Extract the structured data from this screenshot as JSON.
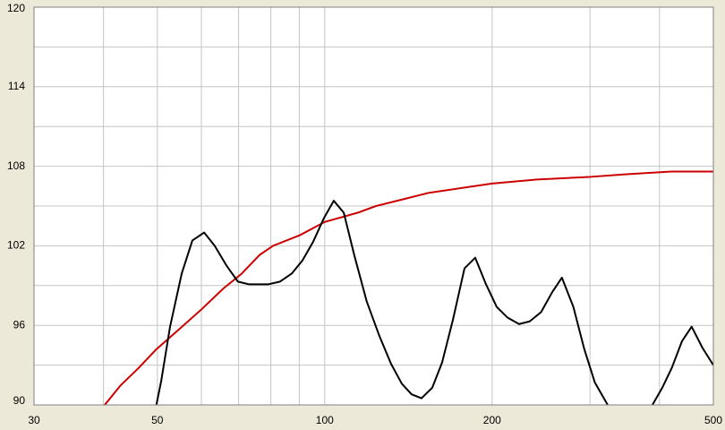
{
  "chart_data": {
    "type": "line",
    "xscale": "log",
    "grid": true,
    "xlim": [
      30,
      500
    ],
    "ylim": [
      90,
      120
    ],
    "xticks": [
      30,
      50,
      100,
      200,
      500
    ],
    "xgrid": [
      40,
      60,
      70,
      80,
      90,
      300,
      400
    ],
    "yticks": [
      90,
      96,
      102,
      108,
      114,
      120
    ],
    "ygrid": [
      93,
      99,
      105,
      111,
      117
    ],
    "series": [
      {
        "color": "#cc0000",
        "x": [
          40.2,
          43.0,
          46.3,
          49.8,
          54.7,
          60,
          65.8,
          70.9,
          76.3,
          80.7,
          90.2,
          100,
          114.7,
          123.6,
          138,
          154,
          179,
          200,
          241,
          300,
          349,
          420,
          500
        ],
        "values": [
          90,
          91.5,
          92.8,
          94.2,
          95.7,
          97.2,
          98.8,
          99.9,
          101.3,
          102.0,
          102.8,
          103.8,
          104.5,
          105.0,
          105.5,
          106.0,
          106.4,
          106.7,
          107.0,
          107.2,
          107.4,
          107.6,
          107.6
        ]
      },
      {
        "color": "#000000",
        "x": [
          49.8,
          50.8,
          52.7,
          55.3,
          57.8,
          60.7,
          63.4,
          66.6,
          69.8,
          73,
          79.2,
          83.1,
          87.2,
          91.2,
          95.3,
          99.7,
          103.8,
          108.2,
          113,
          119,
          125.4,
          131.6,
          137.6,
          143.3,
          149.3,
          156.1,
          162.6,
          170,
          178.4,
          186.5,
          195,
          203.8,
          213,
          223.6,
          233.7,
          245,
          256.5,
          267,
          280,
          293,
          306,
          322.8,
          360,
          388.5,
          404.7,
          421,
          439,
          457,
          478,
          500
        ],
        "values": [
          90,
          91.8,
          95.9,
          99.9,
          102.4,
          103.0,
          102.0,
          100.5,
          99.3,
          99.1,
          99.1,
          99.3,
          99.9,
          100.9,
          102.3,
          104.1,
          105.4,
          104.5,
          101.3,
          97.8,
          95.2,
          93.1,
          91.6,
          90.8,
          90.5,
          91.3,
          93.2,
          96.4,
          100.3,
          101.1,
          99.1,
          97.4,
          96.6,
          96.1,
          96.3,
          97.0,
          98.5,
          99.6,
          97.4,
          94.2,
          91.7,
          90,
          null,
          90,
          91.3,
          92.8,
          94.8,
          95.9,
          94.3,
          93.0
        ]
      }
    ]
  }
}
